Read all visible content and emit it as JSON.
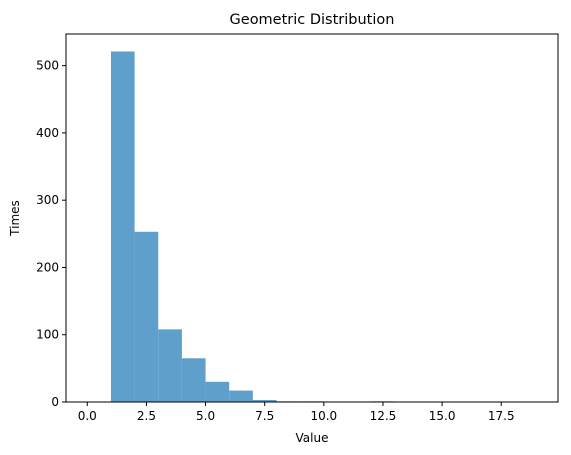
{
  "chart_data": {
    "type": "bar",
    "title": "Geometric Distribution",
    "xlabel": "Value",
    "ylabel": "Times",
    "xlim": [
      -0.9,
      19.9
    ],
    "ylim": [
      0,
      547
    ],
    "xticks": [
      "0.0",
      "2.5",
      "5.0",
      "7.5",
      "10.0",
      "12.5",
      "15.0",
      "17.5"
    ],
    "yticks": [
      "0",
      "100",
      "200",
      "300",
      "400",
      "500"
    ],
    "bin_edges": [
      1,
      2,
      3,
      4,
      5,
      6,
      7,
      8,
      9,
      10,
      11,
      12,
      13,
      14,
      15,
      16,
      17,
      18,
      19
    ],
    "values": [
      521,
      253,
      108,
      65,
      30,
      17,
      3,
      1,
      1,
      0,
      0,
      1,
      0,
      0,
      0,
      0,
      0,
      0
    ],
    "bar_color": "#5f9fcc",
    "grid": false
  }
}
